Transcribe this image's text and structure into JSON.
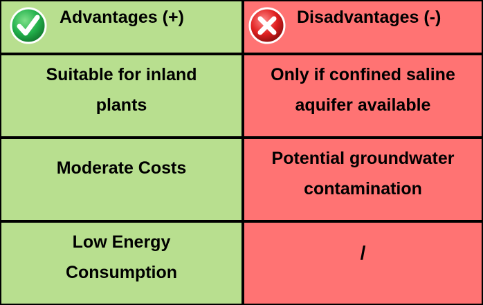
{
  "header": {
    "advantages_label": "Advantages (+)",
    "disadvantages_label": "Disadvantages (-)",
    "advantages_icon": "check-circle-icon",
    "disadvantages_icon": "x-circle-icon"
  },
  "colors": {
    "advantages_bg": "#b8df8f",
    "disadvantages_bg": "#ff7373",
    "check_green": "#22b14c",
    "x_red": "#e02020"
  },
  "rows": [
    {
      "advantage": [
        "Suitable for inland",
        "plants"
      ],
      "disadvantage": [
        "Only if confined saline",
        "aquifer available"
      ]
    },
    {
      "advantage": [
        "Moderate Costs"
      ],
      "disadvantage": [
        "Potential groundwater",
        "contamination"
      ]
    },
    {
      "advantage": [
        "Low Energy",
        "Consumption"
      ],
      "disadvantage": [
        "/"
      ]
    }
  ]
}
